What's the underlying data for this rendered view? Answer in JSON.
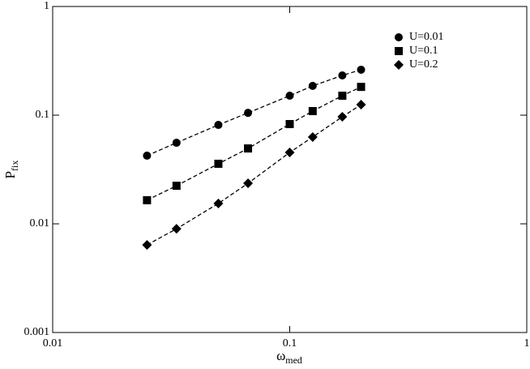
{
  "chart_data": {
    "type": "scatter",
    "xlabel": {
      "text": "ω",
      "subscript": "med"
    },
    "ylabel": {
      "text": "P",
      "subscript": "fix"
    },
    "xscale": "log",
    "yscale": "log",
    "xlim": [
      0.01,
      1
    ],
    "ylim": [
      0.001,
      1
    ],
    "xticks": [
      0.01,
      0.1,
      1
    ],
    "yticks": [
      0.001,
      0.01,
      0.1,
      1
    ],
    "legend_position": "upper right",
    "x": [
      0.025,
      0.0333,
      0.05,
      0.0667,
      0.1,
      0.125,
      0.1667,
      0.2
    ],
    "series": [
      {
        "name": "U=0.01",
        "color": "#000000",
        "marker": "circle",
        "values": [
          0.0424,
          0.0557,
          0.0813,
          0.105,
          0.151,
          0.186,
          0.232,
          0.262
        ]
      },
      {
        "name": "U=0.1",
        "color": "#000000",
        "marker": "square",
        "values": [
          0.0165,
          0.0224,
          0.0357,
          0.0494,
          0.0828,
          0.109,
          0.151,
          0.182
        ]
      },
      {
        "name": "U=0.2",
        "color": "#000000",
        "marker": "diamond",
        "values": [
          0.0064,
          0.009,
          0.0154,
          0.0236,
          0.0454,
          0.0629,
          0.0966,
          0.125
        ]
      }
    ]
  }
}
